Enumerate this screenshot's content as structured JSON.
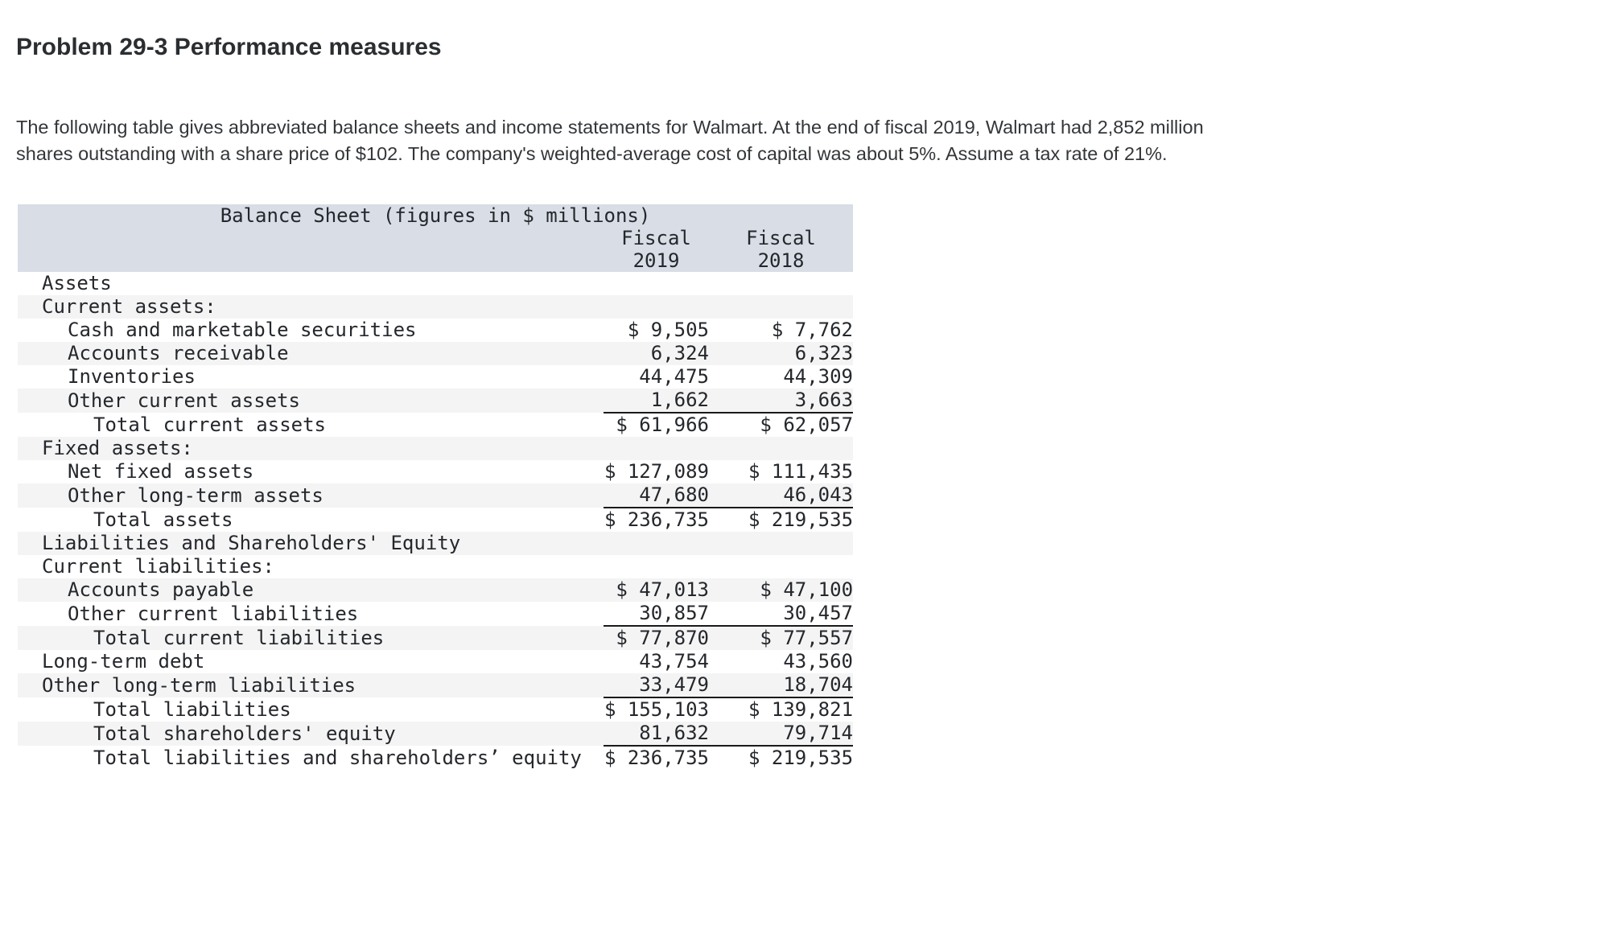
{
  "page": {
    "title": "Problem 29-3 Performance measures",
    "description": "The following table gives abbreviated balance sheets and income statements for Walmart. At the end of fiscal 2019, Walmart had 2,852 million shares outstanding with a share price of $102. The company's weighted-average cost of capital was about 5%. Assume a tax rate of 21%."
  },
  "colors": {
    "table_header_bg": "#d8dde6",
    "row_stripe_bg": "#f4f4f5",
    "sum_rule": "#1a1a1a",
    "text": "#24272b"
  },
  "table": {
    "title": "Balance Sheet (figures in $ millions)",
    "columns": [
      {
        "line1": "Fiscal",
        "line2": "2019"
      },
      {
        "line1": "Fiscal",
        "line2": "2018"
      }
    ],
    "rows": [
      {
        "label": "Assets",
        "indent": 1,
        "fy2019": "",
        "fy2018": "",
        "underline": false
      },
      {
        "label": "Current assets:",
        "indent": 1,
        "fy2019": "",
        "fy2018": "",
        "underline": false
      },
      {
        "label": "Cash and marketable securities",
        "indent": 2,
        "fy2019": "$ 9,505",
        "fy2018": "$ 7,762",
        "underline": false
      },
      {
        "label": "Accounts receivable",
        "indent": 2,
        "fy2019": "6,324",
        "fy2018": "6,323",
        "underline": false
      },
      {
        "label": "Inventories",
        "indent": 2,
        "fy2019": "44,475",
        "fy2018": "44,309",
        "underline": false
      },
      {
        "label": "Other current assets",
        "indent": 2,
        "fy2019": "1,662",
        "fy2018": "3,663",
        "underline": true
      },
      {
        "label": "Total current assets",
        "indent": 3,
        "fy2019": "$ 61,966",
        "fy2018": "$ 62,057",
        "underline": false
      },
      {
        "label": "Fixed assets:",
        "indent": 1,
        "fy2019": "",
        "fy2018": "",
        "underline": false
      },
      {
        "label": "Net fixed assets",
        "indent": 2,
        "fy2019": "$ 127,089",
        "fy2018": "$ 111,435",
        "underline": false
      },
      {
        "label": "Other long-term assets",
        "indent": 2,
        "fy2019": "47,680",
        "fy2018": "46,043",
        "underline": true
      },
      {
        "label": "Total assets",
        "indent": 3,
        "fy2019": "$ 236,735",
        "fy2018": "$ 219,535",
        "underline": false
      },
      {
        "label": "Liabilities and Shareholders' Equity",
        "indent": 1,
        "fy2019": "",
        "fy2018": "",
        "underline": false
      },
      {
        "label": "Current liabilities:",
        "indent": 1,
        "fy2019": "",
        "fy2018": "",
        "underline": false
      },
      {
        "label": "Accounts payable",
        "indent": 2,
        "fy2019": "$ 47,013",
        "fy2018": "$ 47,100",
        "underline": false
      },
      {
        "label": "Other current liabilities",
        "indent": 2,
        "fy2019": "30,857",
        "fy2018": "30,457",
        "underline": true
      },
      {
        "label": "Total current liabilities",
        "indent": 3,
        "fy2019": "$ 77,870",
        "fy2018": "$ 77,557",
        "underline": false
      },
      {
        "label": "Long-term debt",
        "indent": 1,
        "fy2019": "43,754",
        "fy2018": "43,560",
        "underline": false
      },
      {
        "label": "Other long-term liabilities",
        "indent": 1,
        "fy2019": "33,479",
        "fy2018": "18,704",
        "underline": true
      },
      {
        "label": "Total liabilities",
        "indent": 3,
        "fy2019": "$ 155,103",
        "fy2018": "$ 139,821",
        "underline": false
      },
      {
        "label": "Total shareholders' equity",
        "indent": 3,
        "fy2019": "81,632",
        "fy2018": "79,714",
        "underline": true
      },
      {
        "label": "Total liabilities and shareholders’ equity",
        "indent": 3,
        "fy2019": "$ 236,735",
        "fy2018": "$ 219,535",
        "underline": false
      }
    ]
  }
}
